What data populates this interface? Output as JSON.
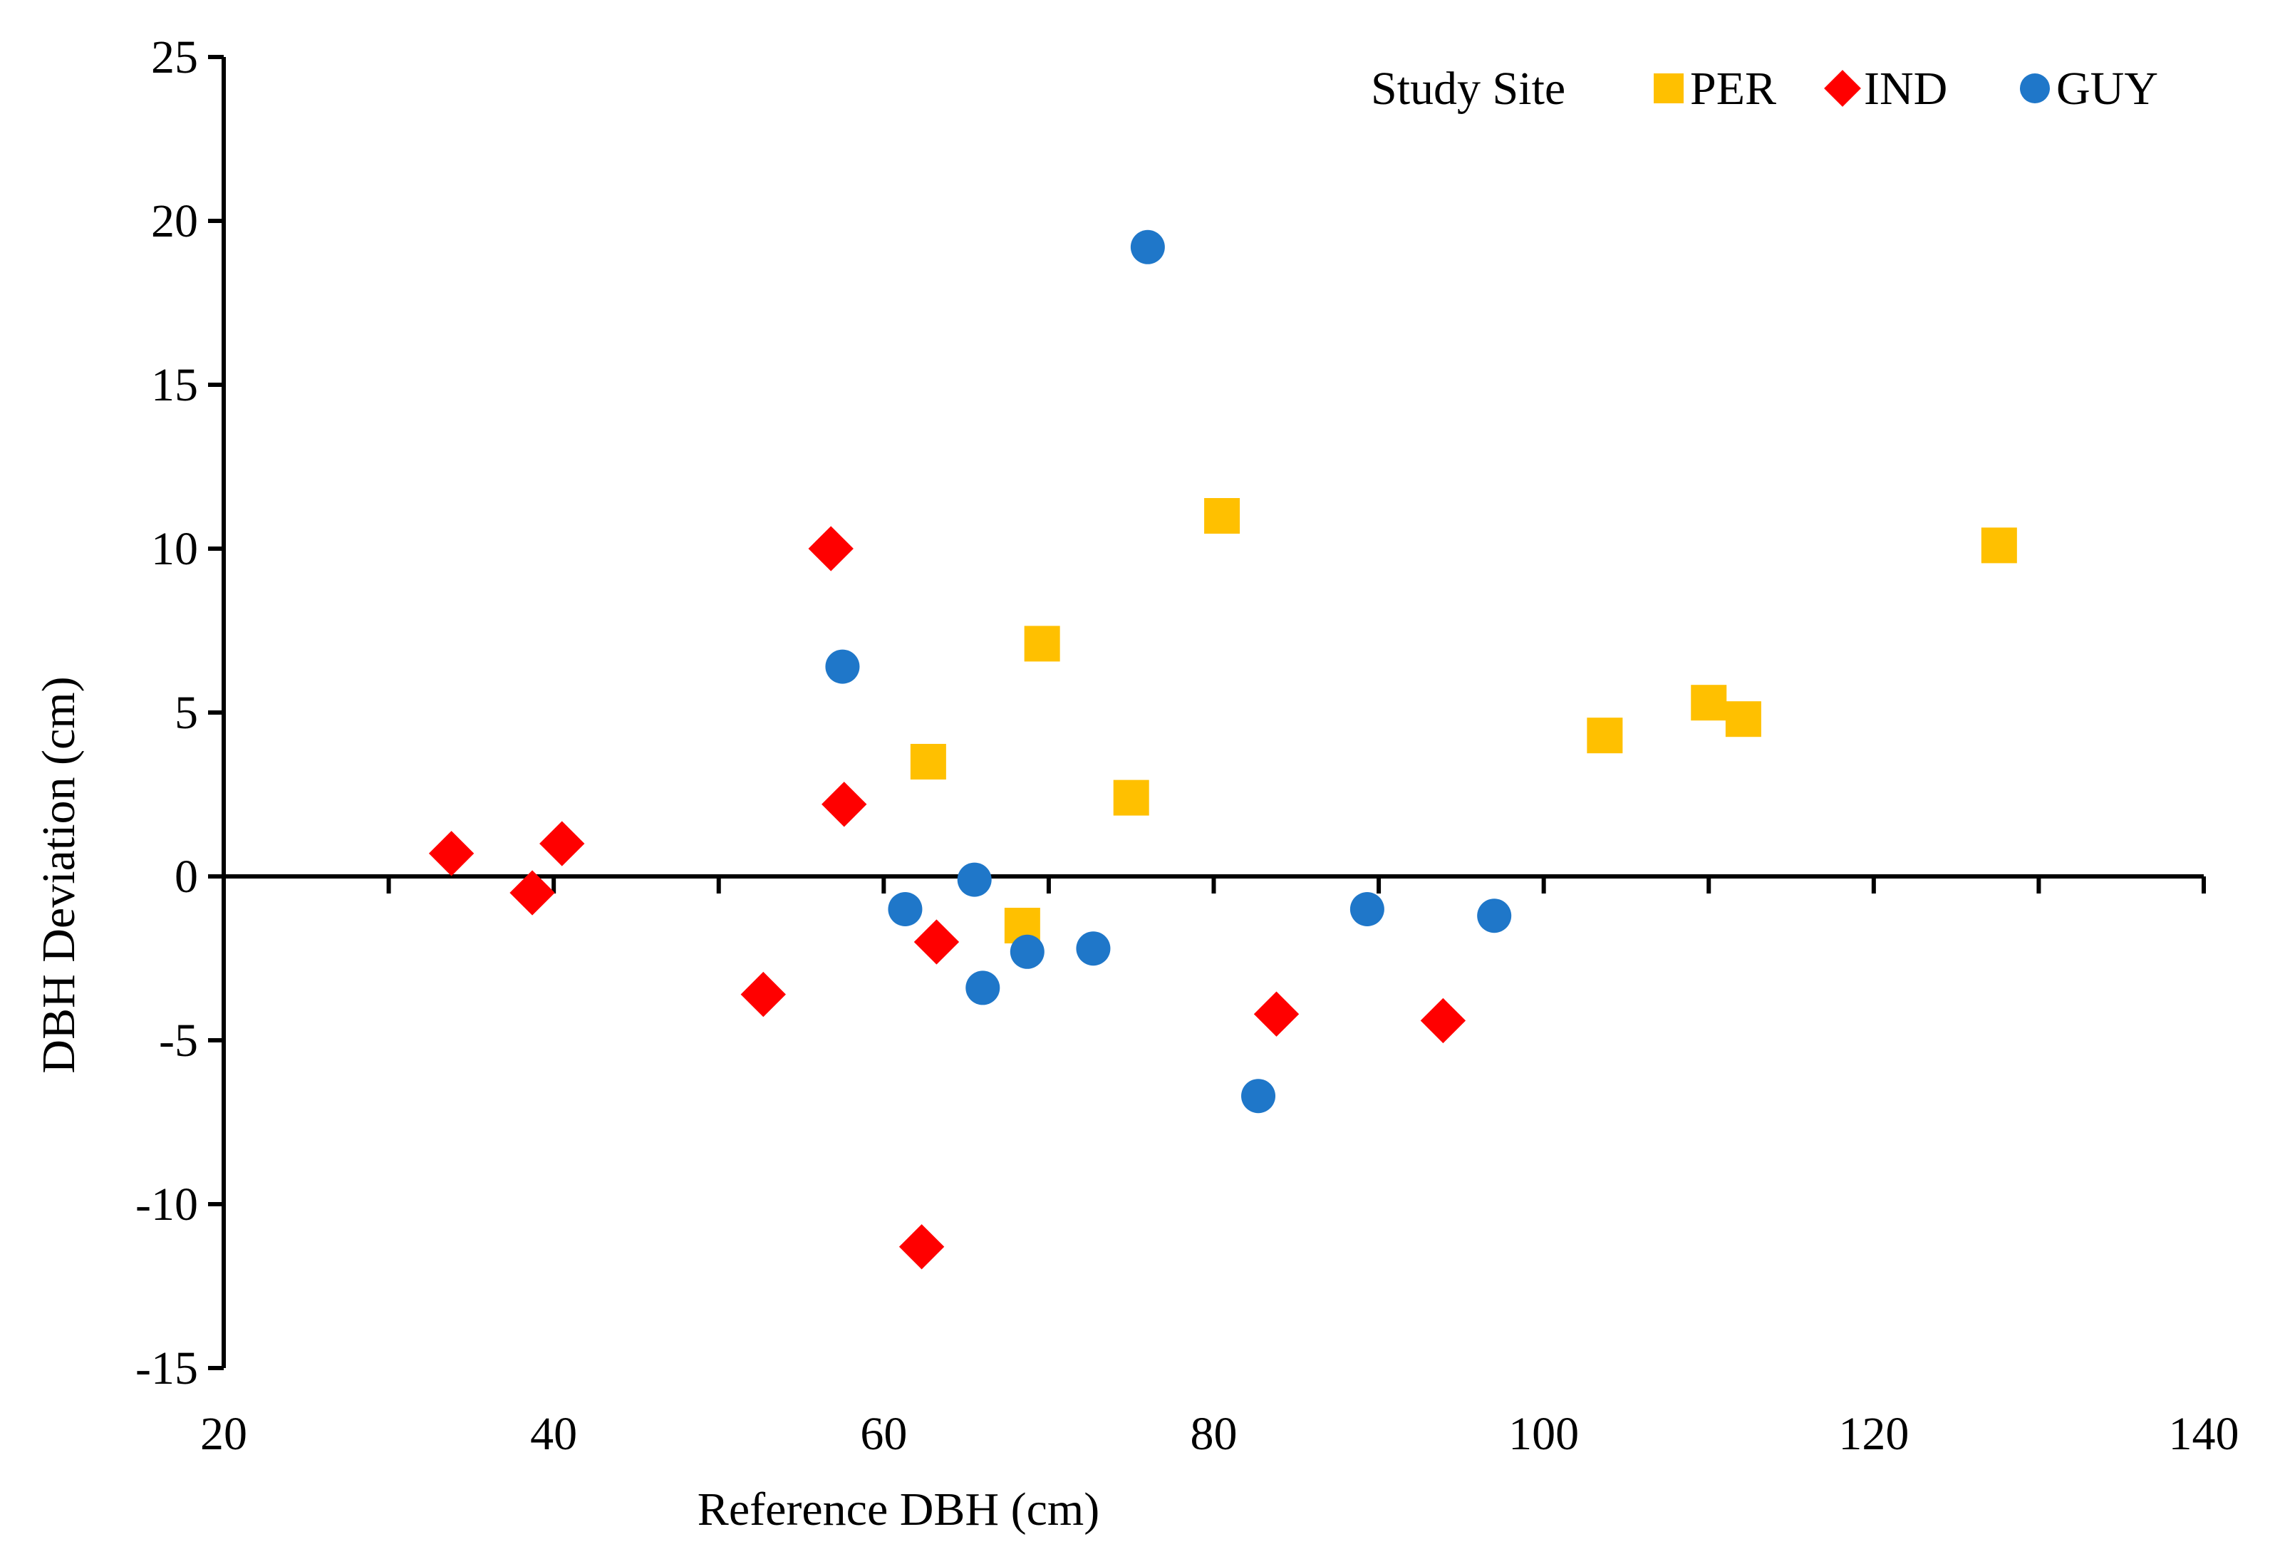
{
  "chart_data": {
    "type": "scatter",
    "title": "",
    "xlabel": "Reference DBH (cm)",
    "ylabel": "DBH Deviation (cm)",
    "xlim": [
      20,
      140
    ],
    "ylim": [
      -15,
      25
    ],
    "x_ticks": [
      20,
      40,
      60,
      80,
      100,
      120,
      140
    ],
    "y_ticks": [
      -15,
      -10,
      -5,
      0,
      5,
      10,
      15,
      20,
      25
    ],
    "x_tick_labels": [
      "20",
      "40",
      "60",
      "80",
      "100",
      "120",
      "140"
    ],
    "y_tick_labels": [
      "-15",
      "-10",
      "-5",
      "0",
      "5",
      "10",
      "15",
      "20",
      "25"
    ],
    "grid": false,
    "legend": {
      "title": "Study Site",
      "placement": "top-right"
    },
    "series": [
      {
        "name": "PER",
        "marker": "square",
        "color": "#FFC000",
        "points": [
          {
            "x": 62.7,
            "y": 3.5
          },
          {
            "x": 68.4,
            "y": -1.5
          },
          {
            "x": 69.6,
            "y": 7.1
          },
          {
            "x": 75.0,
            "y": 2.4
          },
          {
            "x": 80.5,
            "y": 11.0
          },
          {
            "x": 103.7,
            "y": 4.3
          },
          {
            "x": 110.0,
            "y": 5.3
          },
          {
            "x": 112.1,
            "y": 4.8
          },
          {
            "x": 127.6,
            "y": 10.1
          }
        ]
      },
      {
        "name": "IND",
        "marker": "diamond",
        "color": "#FF0000",
        "points": [
          {
            "x": 33.8,
            "y": 0.7
          },
          {
            "x": 38.7,
            "y": -0.5
          },
          {
            "x": 40.5,
            "y": 1.0
          },
          {
            "x": 52.7,
            "y": -3.6
          },
          {
            "x": 56.8,
            "y": 10.0
          },
          {
            "x": 57.6,
            "y": 2.2
          },
          {
            "x": 62.3,
            "y": -11.3
          },
          {
            "x": 63.2,
            "y": -2.0
          },
          {
            "x": 83.8,
            "y": -4.2
          },
          {
            "x": 93.9,
            "y": -4.4
          }
        ]
      },
      {
        "name": "GUY",
        "marker": "circle",
        "color": "#1F77C9",
        "points": [
          {
            "x": 57.5,
            "y": 6.4
          },
          {
            "x": 61.3,
            "y": -1.0
          },
          {
            "x": 65.5,
            "y": -0.1
          },
          {
            "x": 66.0,
            "y": -3.4
          },
          {
            "x": 68.7,
            "y": -2.3
          },
          {
            "x": 72.7,
            "y": -2.2
          },
          {
            "x": 76.0,
            "y": 19.2
          },
          {
            "x": 82.7,
            "y": -6.7
          },
          {
            "x": 89.3,
            "y": -1.0
          },
          {
            "x": 97.0,
            "y": -1.2
          }
        ]
      }
    ]
  }
}
